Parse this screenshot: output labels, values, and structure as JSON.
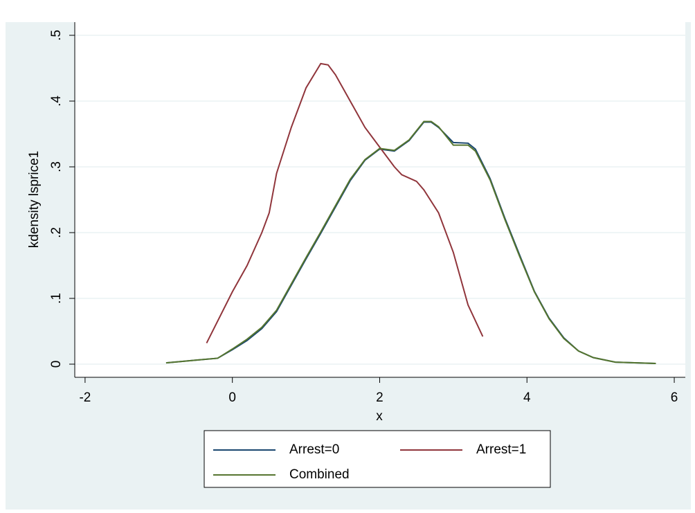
{
  "chart_data": {
    "type": "line",
    "xlabel": "x",
    "ylabel": "kdensity lsprice1",
    "xlim": [
      -2.14,
      6.15
    ],
    "ylim": [
      -0.02,
      0.52
    ],
    "xticks": [
      -2,
      0,
      2,
      4,
      6
    ],
    "yticks": [
      0,
      {
        "value": 0.1,
        "label": ".1"
      },
      {
        "value": 0.2,
        "label": ".2"
      },
      {
        "value": 0.3,
        "label": ".3"
      },
      {
        "value": 0.4,
        "label": ".4"
      },
      {
        "value": 0.5,
        "label": ".5"
      }
    ],
    "grid": true,
    "legend": "bottom",
    "series": [
      {
        "name": "Arrest=0",
        "color": "#1a476f",
        "x": [
          -0.9,
          -0.5,
          -0.2,
          0,
          0.2,
          0.4,
          0.6,
          0.8,
          1.0,
          1.2,
          1.4,
          1.6,
          1.8,
          2.0,
          2.2,
          2.4,
          2.6,
          2.7,
          2.8,
          3.0,
          3.2,
          3.3,
          3.5,
          3.7,
          3.9,
          4.1,
          4.3,
          4.5,
          4.7,
          4.9,
          5.2,
          5.75
        ],
        "values": [
          0.002,
          0.006,
          0.009,
          0.022,
          0.036,
          0.054,
          0.08,
          0.12,
          0.16,
          0.199,
          0.239,
          0.279,
          0.31,
          0.327,
          0.324,
          0.34,
          0.368,
          0.368,
          0.36,
          0.337,
          0.336,
          0.327,
          0.282,
          0.222,
          0.166,
          0.111,
          0.07,
          0.04,
          0.02,
          0.01,
          0.003,
          0.001
        ]
      },
      {
        "name": "Arrest=1",
        "color": "#90353b",
        "x": [
          -0.35,
          0,
          0.2,
          0.4,
          0.5,
          0.6,
          0.8,
          1.0,
          1.2,
          1.3,
          1.4,
          1.6,
          1.8,
          2.0,
          2.2,
          2.3,
          2.5,
          2.6,
          2.8,
          3.0,
          3.2,
          3.4
        ],
        "values": [
          0.032,
          0.11,
          0.15,
          0.2,
          0.23,
          0.29,
          0.36,
          0.42,
          0.457,
          0.455,
          0.44,
          0.4,
          0.36,
          0.33,
          0.3,
          0.288,
          0.278,
          0.265,
          0.23,
          0.17,
          0.09,
          0.042
        ]
      },
      {
        "name": "Combined",
        "color": "#55752f",
        "x": [
          -0.9,
          -0.5,
          -0.2,
          0,
          0.2,
          0.4,
          0.6,
          0.8,
          1.0,
          1.2,
          1.4,
          1.6,
          1.8,
          2.0,
          2.2,
          2.4,
          2.6,
          2.7,
          2.8,
          3.0,
          3.2,
          3.3,
          3.5,
          3.7,
          3.9,
          4.1,
          4.3,
          4.5,
          4.7,
          4.9,
          5.2,
          5.75
        ],
        "values": [
          0.002,
          0.006,
          0.009,
          0.023,
          0.038,
          0.056,
          0.082,
          0.122,
          0.162,
          0.201,
          0.241,
          0.281,
          0.311,
          0.328,
          0.325,
          0.341,
          0.369,
          0.369,
          0.361,
          0.333,
          0.333,
          0.324,
          0.28,
          0.22,
          0.164,
          0.11,
          0.069,
          0.039,
          0.02,
          0.01,
          0.003,
          0.001
        ]
      }
    ]
  }
}
